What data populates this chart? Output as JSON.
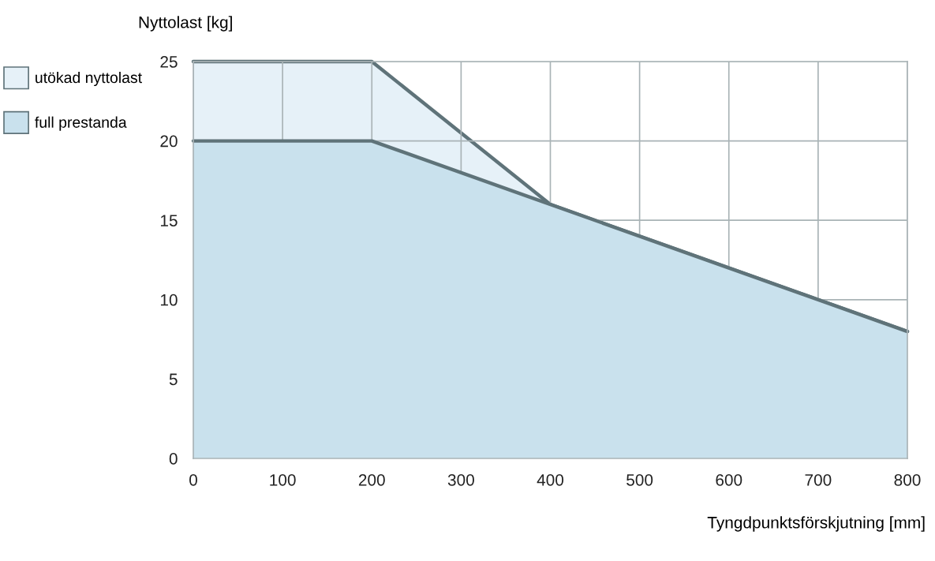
{
  "chart_data": {
    "type": "area",
    "xlabel": "Tyngdpunktsförskjutning [mm]",
    "ylabel": "Nyttolast [kg]",
    "xlim": [
      0,
      800
    ],
    "xticks": [
      0,
      100,
      200,
      300,
      400,
      500,
      600,
      700,
      800
    ],
    "ylim": [
      0,
      25
    ],
    "yticks": [
      0,
      5,
      10,
      15,
      20,
      25
    ],
    "grid": true,
    "legend": "left",
    "series": [
      {
        "name": "utökad nyttolast",
        "color": "#e6f1f8",
        "x": [
          0,
          200,
          400,
          800
        ],
        "values": [
          25,
          25,
          16,
          8
        ]
      },
      {
        "name": "full prestanda",
        "color": "#c9e1ed",
        "x": [
          0,
          200,
          800
        ],
        "values": [
          20,
          20,
          8
        ]
      }
    ]
  }
}
